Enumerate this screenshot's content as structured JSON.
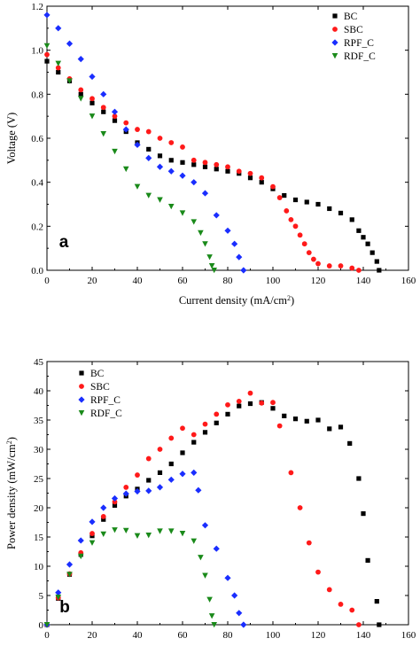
{
  "colors": {
    "BC": "#000000",
    "SBC": "#ff1a1a",
    "RPF_C": "#1a2eff",
    "RDF_C": "#1a8a1a"
  },
  "chart_data": [
    {
      "panel": "a",
      "type": "scatter",
      "title": "",
      "xlabel": "Current density (mA/cm",
      "xlabel_sup": "2",
      "xlabel_end": ")",
      "ylabel": "Voltage (V)",
      "xlim": [
        0,
        160
      ],
      "ylim": [
        0,
        1.2
      ],
      "xticks": [
        "0",
        "20",
        "40",
        "60",
        "80",
        "100",
        "120",
        "140",
        "160"
      ],
      "yticks": [
        "0.0",
        "0.2",
        "0.4",
        "0.6",
        "0.8",
        "1.0",
        "1.2"
      ],
      "legend_position": "top-right",
      "series": [
        {
          "name": "BC",
          "marker": "square",
          "color": "#000000",
          "points": [
            [
              0,
              0.95
            ],
            [
              5,
              0.9
            ],
            [
              10,
              0.86
            ],
            [
              15,
              0.8
            ],
            [
              20,
              0.76
            ],
            [
              25,
              0.72
            ],
            [
              30,
              0.68
            ],
            [
              35,
              0.63
            ],
            [
              40,
              0.58
            ],
            [
              45,
              0.55
            ],
            [
              50,
              0.52
            ],
            [
              55,
              0.5
            ],
            [
              60,
              0.49
            ],
            [
              65,
              0.48
            ],
            [
              70,
              0.47
            ],
            [
              75,
              0.46
            ],
            [
              80,
              0.45
            ],
            [
              85,
              0.44
            ],
            [
              90,
              0.42
            ],
            [
              95,
              0.4
            ],
            [
              100,
              0.37
            ],
            [
              105,
              0.34
            ],
            [
              110,
              0.32
            ],
            [
              115,
              0.31
            ],
            [
              120,
              0.3
            ],
            [
              125,
              0.28
            ],
            [
              130,
              0.26
            ],
            [
              135,
              0.23
            ],
            [
              138,
              0.18
            ],
            [
              140,
              0.15
            ],
            [
              142,
              0.12
            ],
            [
              144,
              0.08
            ],
            [
              146,
              0.04
            ],
            [
              147,
              0.0
            ]
          ]
        },
        {
          "name": "SBC",
          "marker": "circle",
          "color": "#ff1a1a",
          "points": [
            [
              0,
              0.98
            ],
            [
              5,
              0.92
            ],
            [
              10,
              0.87
            ],
            [
              15,
              0.82
            ],
            [
              20,
              0.78
            ],
            [
              25,
              0.74
            ],
            [
              30,
              0.7
            ],
            [
              35,
              0.67
            ],
            [
              40,
              0.64
            ],
            [
              45,
              0.63
            ],
            [
              50,
              0.6
            ],
            [
              55,
              0.58
            ],
            [
              60,
              0.56
            ],
            [
              65,
              0.5
            ],
            [
              70,
              0.49
            ],
            [
              75,
              0.48
            ],
            [
              80,
              0.47
            ],
            [
              85,
              0.45
            ],
            [
              90,
              0.44
            ],
            [
              95,
              0.42
            ],
            [
              100,
              0.38
            ],
            [
              103,
              0.33
            ],
            [
              106,
              0.27
            ],
            [
              108,
              0.23
            ],
            [
              110,
              0.2
            ],
            [
              112,
              0.16
            ],
            [
              114,
              0.12
            ],
            [
              116,
              0.08
            ],
            [
              118,
              0.05
            ],
            [
              120,
              0.03
            ],
            [
              125,
              0.02
            ],
            [
              130,
              0.02
            ],
            [
              135,
              0.01
            ],
            [
              138,
              0.0
            ]
          ]
        },
        {
          "name": "RPF_C",
          "marker": "diamond",
          "color": "#1a2eff",
          "points": [
            [
              0,
              1.16
            ],
            [
              5,
              1.1
            ],
            [
              10,
              1.03
            ],
            [
              15,
              0.96
            ],
            [
              20,
              0.88
            ],
            [
              25,
              0.8
            ],
            [
              30,
              0.72
            ],
            [
              35,
              0.64
            ],
            [
              40,
              0.57
            ],
            [
              45,
              0.51
            ],
            [
              50,
              0.47
            ],
            [
              55,
              0.45
            ],
            [
              60,
              0.43
            ],
            [
              65,
              0.4
            ],
            [
              70,
              0.35
            ],
            [
              75,
              0.25
            ],
            [
              80,
              0.18
            ],
            [
              83,
              0.12
            ],
            [
              85,
              0.06
            ],
            [
              87,
              0.0
            ]
          ]
        },
        {
          "name": "RDF_C",
          "marker": "triangle",
          "color": "#1a8a1a",
          "points": [
            [
              0,
              1.02
            ],
            [
              5,
              0.94
            ],
            [
              10,
              0.86
            ],
            [
              15,
              0.78
            ],
            [
              20,
              0.7
            ],
            [
              25,
              0.62
            ],
            [
              30,
              0.54
            ],
            [
              35,
              0.46
            ],
            [
              40,
              0.38
            ],
            [
              45,
              0.34
            ],
            [
              50,
              0.32
            ],
            [
              55,
              0.29
            ],
            [
              60,
              0.26
            ],
            [
              65,
              0.22
            ],
            [
              68,
              0.17
            ],
            [
              70,
              0.12
            ],
            [
              72,
              0.06
            ],
            [
              73,
              0.02
            ],
            [
              74,
              0.0
            ]
          ]
        }
      ]
    },
    {
      "panel": "b",
      "type": "scatter",
      "title": "",
      "xlabel": "Current density (mA/cm",
      "xlabel_sup": "2",
      "xlabel_end": ")",
      "ylabel": "Power density (mW/cm",
      "ylabel_sup": "2",
      "ylabel_end": ")",
      "xlim": [
        0,
        160
      ],
      "ylim": [
        0,
        45
      ],
      "xticks": [
        "0",
        "20",
        "40",
        "60",
        "80",
        "100",
        "120",
        "140",
        "160"
      ],
      "yticks": [
        "0",
        "5",
        "10",
        "15",
        "20",
        "25",
        "30",
        "35",
        "40",
        "45"
      ],
      "legend_position": "top-left",
      "series": [
        {
          "name": "BC",
          "marker": "square",
          "color": "#000000",
          "points": [
            [
              0,
              0
            ],
            [
              5,
              4.5
            ],
            [
              10,
              8.6
            ],
            [
              15,
              12
            ],
            [
              20,
              15.2
            ],
            [
              25,
              18
            ],
            [
              30,
              20.4
            ],
            [
              35,
              22
            ],
            [
              40,
              23.2
            ],
            [
              45,
              24.7
            ],
            [
              50,
              26
            ],
            [
              55,
              27.5
            ],
            [
              60,
              29.4
            ],
            [
              65,
              31.2
            ],
            [
              70,
              32.9
            ],
            [
              75,
              34.5
            ],
            [
              80,
              36
            ],
            [
              85,
              37.4
            ],
            [
              90,
              37.8
            ],
            [
              95,
              38
            ],
            [
              100,
              37
            ],
            [
              105,
              35.7
            ],
            [
              110,
              35.2
            ],
            [
              115,
              34.8
            ],
            [
              120,
              35
            ],
            [
              125,
              33.5
            ],
            [
              130,
              33.8
            ],
            [
              134,
              31
            ],
            [
              138,
              25
            ],
            [
              140,
              19
            ],
            [
              142,
              11
            ],
            [
              146,
              4
            ],
            [
              147,
              0
            ]
          ]
        },
        {
          "name": "SBC",
          "marker": "circle",
          "color": "#ff1a1a",
          "points": [
            [
              0,
              0
            ],
            [
              5,
              4.6
            ],
            [
              10,
              8.7
            ],
            [
              15,
              12.3
            ],
            [
              20,
              15.6
            ],
            [
              25,
              18.5
            ],
            [
              30,
              21
            ],
            [
              35,
              23.5
            ],
            [
              40,
              25.6
            ],
            [
              45,
              28.4
            ],
            [
              50,
              30
            ],
            [
              55,
              31.9
            ],
            [
              60,
              33.6
            ],
            [
              65,
              32.5
            ],
            [
              70,
              34.3
            ],
            [
              75,
              36
            ],
            [
              80,
              37.6
            ],
            [
              85,
              38.2
            ],
            [
              90,
              39.6
            ],
            [
              95,
              37.9
            ],
            [
              100,
              38
            ],
            [
              103,
              34
            ],
            [
              108,
              26
            ],
            [
              112,
              20
            ],
            [
              116,
              14
            ],
            [
              120,
              9
            ],
            [
              125,
              6
            ],
            [
              130,
              3.5
            ],
            [
              135,
              2.5
            ],
            [
              138,
              0
            ]
          ]
        },
        {
          "name": "RPF_C",
          "marker": "diamond",
          "color": "#1a2eff",
          "points": [
            [
              0,
              0
            ],
            [
              5,
              5.5
            ],
            [
              10,
              10.3
            ],
            [
              15,
              14.4
            ],
            [
              20,
              17.6
            ],
            [
              25,
              20
            ],
            [
              30,
              21.6
            ],
            [
              35,
              22.4
            ],
            [
              40,
              22.8
            ],
            [
              45,
              22.9
            ],
            [
              50,
              23.5
            ],
            [
              55,
              24.8
            ],
            [
              60,
              25.8
            ],
            [
              65,
              26
            ],
            [
              67,
              23
            ],
            [
              70,
              17
            ],
            [
              75,
              13
            ],
            [
              80,
              8
            ],
            [
              83,
              5
            ],
            [
              85,
              2
            ],
            [
              87,
              0
            ]
          ]
        },
        {
          "name": "RDF_C",
          "marker": "triangle",
          "color": "#1a8a1a",
          "points": [
            [
              0,
              0
            ],
            [
              5,
              4.7
            ],
            [
              10,
              8.6
            ],
            [
              15,
              11.7
            ],
            [
              20,
              14
            ],
            [
              25,
              15.5
            ],
            [
              30,
              16.2
            ],
            [
              35,
              16.1
            ],
            [
              40,
              15.2
            ],
            [
              45,
              15.3
            ],
            [
              50,
              16
            ],
            [
              55,
              16
            ],
            [
              60,
              15.6
            ],
            [
              65,
              14.3
            ],
            [
              68,
              11.5
            ],
            [
              70,
              8.4
            ],
            [
              72,
              4.3
            ],
            [
              73,
              1.5
            ],
            [
              74,
              0
            ]
          ]
        }
      ]
    }
  ]
}
